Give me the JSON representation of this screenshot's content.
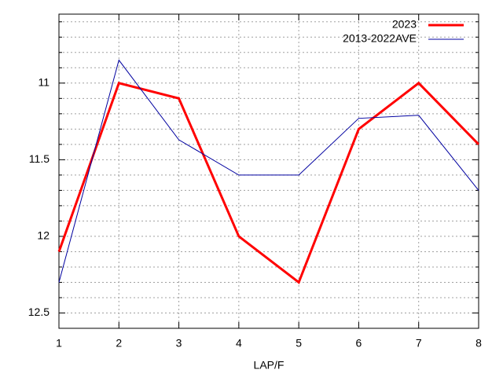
{
  "chart_data": {
    "type": "line",
    "xlabel": "LAP/F",
    "x": [
      1,
      2,
      3,
      4,
      5,
      6,
      7,
      8
    ],
    "series": [
      {
        "name": "2023",
        "color": "#ff0000",
        "width": 3,
        "values": [
          12.1,
          11.0,
          11.1,
          12.0,
          12.3,
          11.3,
          11.0,
          11.4
        ]
      },
      {
        "name": "2013-2022AVE",
        "color": "#0000a0",
        "width": 1,
        "values": [
          12.3,
          10.85,
          11.37,
          11.6,
          11.6,
          11.23,
          11.21,
          11.7
        ]
      }
    ],
    "xlim": [
      1,
      8
    ],
    "xticks": [
      1,
      2,
      3,
      4,
      5,
      6,
      7,
      8
    ],
    "ylim": [
      12.6,
      10.55
    ],
    "yticks": [
      11,
      11.5,
      12,
      12.5
    ],
    "yminorticks": [
      10.6,
      10.7,
      10.8,
      10.9,
      11.1,
      11.2,
      11.3,
      11.4,
      11.6,
      11.7,
      11.8,
      11.9,
      12.1,
      12.2,
      12.3,
      12.4,
      12.6
    ],
    "grid": true,
    "legend": "top-right"
  }
}
